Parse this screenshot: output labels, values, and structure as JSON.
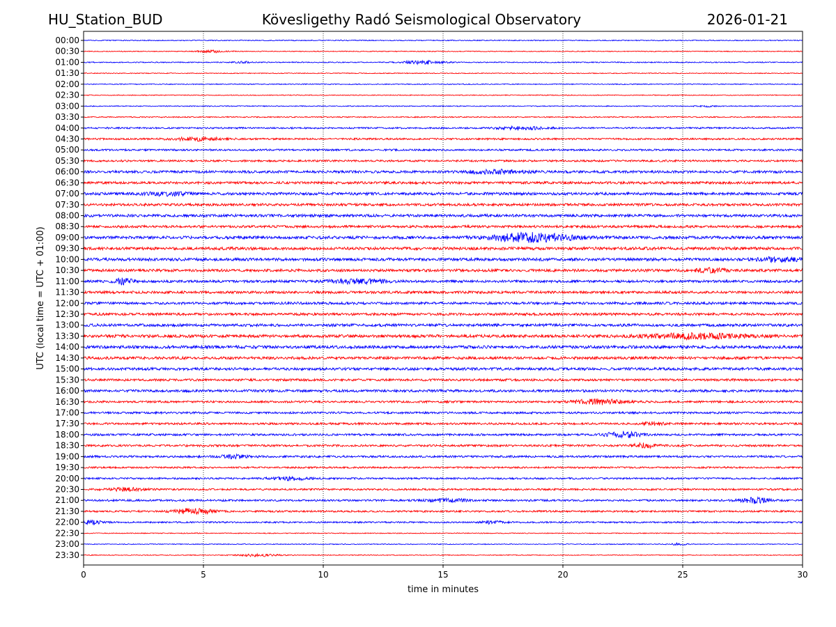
{
  "chart_data": {
    "type": "line",
    "subtype": "helicorder",
    "title_left": "HU_Station_BUD",
    "title_center": "Kövesligethy Radó Seismological Observatory",
    "title_right": "2026-01-21",
    "xlabel": "time in minutes",
    "ylabel": "UTC (local time = UTC + 01:00)",
    "xlim": [
      0,
      30
    ],
    "x_ticks": [
      "0",
      "5",
      "10",
      "15",
      "20",
      "25",
      "30"
    ],
    "x_tick_values": [
      0,
      5,
      10,
      15,
      20,
      25,
      30
    ],
    "grid": "vertical dotted at x ticks",
    "colors": [
      "#0000ff",
      "#ff0000"
    ],
    "rows": [
      {
        "label": "00:00",
        "noise": 0.2,
        "events": []
      },
      {
        "label": "00:30",
        "noise": 0.18,
        "events": [
          {
            "t": 5.4,
            "amp": 0.55,
            "dur": 0.6
          }
        ]
      },
      {
        "label": "01:00",
        "noise": 0.22,
        "events": [
          {
            "t": 14.2,
            "amp": 0.8,
            "dur": 0.8
          },
          {
            "t": 6.6,
            "amp": 0.4,
            "dur": 0.3
          }
        ]
      },
      {
        "label": "01:30",
        "noise": 0.18,
        "events": []
      },
      {
        "label": "02:00",
        "noise": 0.2,
        "events": []
      },
      {
        "label": "02:30",
        "noise": 0.18,
        "events": []
      },
      {
        "label": "03:00",
        "noise": 0.2,
        "events": [
          {
            "t": 26.0,
            "amp": 0.35,
            "dur": 0.4
          }
        ]
      },
      {
        "label": "03:30",
        "noise": 0.25,
        "events": []
      },
      {
        "label": "04:00",
        "noise": 0.35,
        "events": [
          {
            "t": 18.3,
            "amp": 0.6,
            "dur": 1.0
          }
        ]
      },
      {
        "label": "04:30",
        "noise": 0.4,
        "events": [
          {
            "t": 4.8,
            "amp": 0.75,
            "dur": 1.0
          }
        ]
      },
      {
        "label": "05:00",
        "noise": 0.4,
        "events": []
      },
      {
        "label": "05:30",
        "noise": 0.42,
        "events": []
      },
      {
        "label": "06:00",
        "noise": 0.55,
        "events": [
          {
            "t": 17.2,
            "amp": 0.8,
            "dur": 1.2
          }
        ]
      },
      {
        "label": "06:30",
        "noise": 0.55,
        "events": []
      },
      {
        "label": "07:00",
        "noise": 0.6,
        "events": [
          {
            "t": 3.5,
            "amp": 0.7,
            "dur": 0.8
          }
        ]
      },
      {
        "label": "07:30",
        "noise": 0.55,
        "events": []
      },
      {
        "label": "08:00",
        "noise": 0.6,
        "events": []
      },
      {
        "label": "08:30",
        "noise": 0.55,
        "events": []
      },
      {
        "label": "09:00",
        "noise": 0.65,
        "events": [
          {
            "t": 19.2,
            "amp": 1.3,
            "dur": 1.5
          },
          {
            "t": 18.0,
            "amp": 0.9,
            "dur": 1.2
          }
        ]
      },
      {
        "label": "09:30",
        "noise": 0.65,
        "events": []
      },
      {
        "label": "10:00",
        "noise": 0.65,
        "events": [
          {
            "t": 29.0,
            "amp": 0.9,
            "dur": 0.8
          }
        ]
      },
      {
        "label": "10:30",
        "noise": 0.6,
        "events": [
          {
            "t": 26.2,
            "amp": 0.8,
            "dur": 0.6
          }
        ]
      },
      {
        "label": "11:00",
        "noise": 0.55,
        "events": [
          {
            "t": 1.7,
            "amp": 1.3,
            "dur": 0.4
          },
          {
            "t": 11.5,
            "amp": 0.9,
            "dur": 1.2
          }
        ]
      },
      {
        "label": "11:30",
        "noise": 0.55,
        "events": []
      },
      {
        "label": "12:00",
        "noise": 0.55,
        "events": []
      },
      {
        "label": "12:30",
        "noise": 0.55,
        "events": []
      },
      {
        "label": "13:00",
        "noise": 0.6,
        "events": []
      },
      {
        "label": "13:30",
        "noise": 0.65,
        "events": [
          {
            "t": 25.5,
            "amp": 1.0,
            "dur": 2.0
          }
        ]
      },
      {
        "label": "14:00",
        "noise": 0.65,
        "events": []
      },
      {
        "label": "14:30",
        "noise": 0.6,
        "events": []
      },
      {
        "label": "15:00",
        "noise": 0.6,
        "events": []
      },
      {
        "label": "15:30",
        "noise": 0.5,
        "events": []
      },
      {
        "label": "16:00",
        "noise": 0.55,
        "events": []
      },
      {
        "label": "16:30",
        "noise": 0.45,
        "events": [
          {
            "t": 21.5,
            "amp": 1.1,
            "dur": 1.0
          }
        ]
      },
      {
        "label": "17:00",
        "noise": 0.45,
        "events": []
      },
      {
        "label": "17:30",
        "noise": 0.45,
        "events": [
          {
            "t": 23.8,
            "amp": 0.6,
            "dur": 0.5
          }
        ]
      },
      {
        "label": "18:00",
        "noise": 0.45,
        "events": [
          {
            "t": 22.5,
            "amp": 1.3,
            "dur": 0.7
          }
        ]
      },
      {
        "label": "18:30",
        "noise": 0.45,
        "events": [
          {
            "t": 23.4,
            "amp": 0.9,
            "dur": 0.5
          }
        ]
      },
      {
        "label": "19:00",
        "noise": 0.45,
        "events": [
          {
            "t": 6.3,
            "amp": 0.7,
            "dur": 0.6
          }
        ]
      },
      {
        "label": "19:30",
        "noise": 0.38,
        "events": []
      },
      {
        "label": "20:00",
        "noise": 0.4,
        "events": [
          {
            "t": 8.6,
            "amp": 0.7,
            "dur": 0.8
          }
        ]
      },
      {
        "label": "20:30",
        "noise": 0.4,
        "events": [
          {
            "t": 1.8,
            "amp": 0.6,
            "dur": 0.8
          }
        ]
      },
      {
        "label": "21:00",
        "noise": 0.42,
        "events": [
          {
            "t": 28.0,
            "amp": 1.2,
            "dur": 0.6
          },
          {
            "t": 15.2,
            "amp": 0.7,
            "dur": 0.8
          }
        ]
      },
      {
        "label": "21:30",
        "noise": 0.4,
        "events": [
          {
            "t": 4.6,
            "amp": 1.2,
            "dur": 0.8
          }
        ]
      },
      {
        "label": "22:00",
        "noise": 0.35,
        "events": [
          {
            "t": 0.2,
            "amp": 0.8,
            "dur": 0.6
          },
          {
            "t": 17.0,
            "amp": 0.6,
            "dur": 0.5
          }
        ]
      },
      {
        "label": "22:30",
        "noise": 0.18,
        "events": []
      },
      {
        "label": "23:00",
        "noise": 0.18,
        "events": [
          {
            "t": 24.8,
            "amp": 0.45,
            "dur": 0.4
          }
        ]
      },
      {
        "label": "23:30",
        "noise": 0.18,
        "events": [
          {
            "t": 7.3,
            "amp": 0.55,
            "dur": 0.8
          }
        ]
      }
    ]
  }
}
